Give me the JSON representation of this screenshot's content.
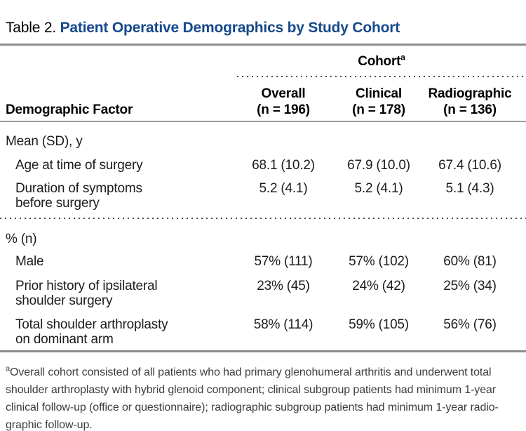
{
  "title": {
    "prefix": "Table 2.",
    "main": "Patient Operative Demographics by Study Cohort"
  },
  "table": {
    "spanner": {
      "label": "Cohort",
      "footnote_marker": "a"
    },
    "stub_header": "Demographic Factor",
    "columns": [
      {
        "label": "Overall",
        "n": "(n = 196)"
      },
      {
        "label": "Clinical",
        "n": "(n = 178)"
      },
      {
        "label": "Radiographic",
        "n": "(n = 136)"
      }
    ],
    "sections": [
      {
        "header": "Mean (SD), y",
        "rows": [
          {
            "label": "Age at time of surgery",
            "label2": "",
            "values": [
              "68.1 (10.2)",
              "67.9 (10.0)",
              "67.4 (10.6)"
            ]
          },
          {
            "label": "Duration of symptoms",
            "label2": "before surgery",
            "values": [
              "5.2 (4.1)",
              "5.2 (4.1)",
              "5.1 (4.3)"
            ]
          }
        ]
      },
      {
        "header": "% (n)",
        "rows": [
          {
            "label": "Male",
            "label2": "",
            "values": [
              "57% (111)",
              "57% (102)",
              "60% (81)"
            ]
          },
          {
            "label": "Prior history of ipsilateral",
            "label2": "shoulder surgery",
            "values": [
              "23% (45)",
              "24% (42)",
              "25% (34)"
            ]
          },
          {
            "label": "Total shoulder arthroplasty",
            "label2": "on dominant arm",
            "values": [
              "58% (114)",
              "59% (105)",
              "56% (76)"
            ]
          }
        ]
      }
    ]
  },
  "footnote": {
    "marker": "a",
    "lines": [
      "Overall cohort consisted of all patients who had primary glenohumeral arthritis and underwent total",
      "shoulder arthroplasty with hybrid glenoid component; clinical subgroup patients had minimum 1-year",
      "clinical follow-up (office or questionnaire); radiographic subgroup patients had minimum 1-year radio-",
      "graphic follow-up."
    ]
  },
  "colors": {
    "accent_blue": "#17498c",
    "rule_gray": "#8c8c8c"
  }
}
